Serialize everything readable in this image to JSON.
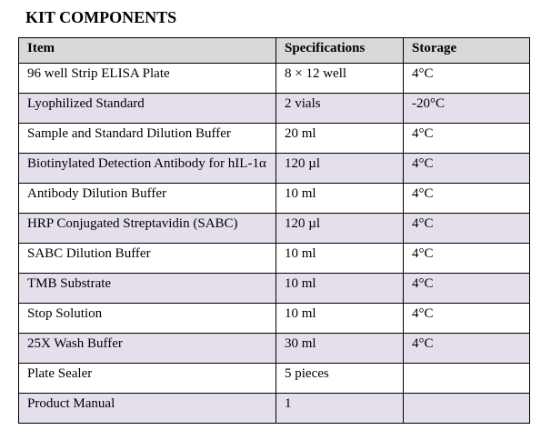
{
  "title": "KIT COMPONENTS",
  "table": {
    "header": [
      "Item",
      "Specifications",
      "Storage"
    ],
    "rows": [
      [
        "96 well Strip ELISA Plate",
        "8 × 12 well",
        "4°C"
      ],
      [
        "Lyophilized Standard",
        "2 vials",
        "-20°C"
      ],
      [
        "Sample and Standard Dilution Buffer",
        "20 ml",
        "4°C"
      ],
      [
        "Biotinylated Detection Antibody for hIL-1α",
        "120 µl",
        "4°C"
      ],
      [
        "Antibody Dilution Buffer",
        "10 ml",
        "4°C"
      ],
      [
        "HRP Conjugated Streptavidin (SABC)",
        "120 µl",
        "4°C"
      ],
      [
        "SABC Dilution Buffer",
        "10 ml",
        "4°C"
      ],
      [
        "TMB Substrate",
        "10 ml",
        "4°C"
      ],
      [
        "Stop Solution",
        "10 ml",
        "4°C"
      ],
      [
        "25X Wash Buffer",
        "30 ml",
        "4°C"
      ],
      [
        "Plate Sealer",
        "5 pieces",
        null
      ],
      [
        "Product Manual",
        "1",
        null
      ]
    ]
  }
}
